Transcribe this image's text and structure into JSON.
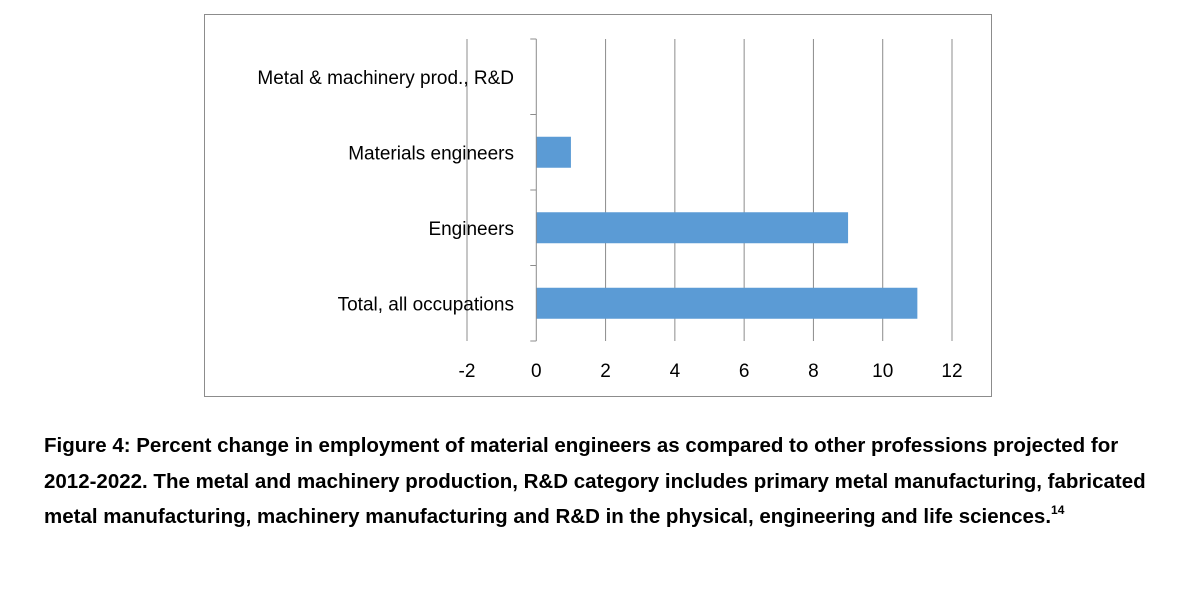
{
  "chart_data": {
    "type": "bar",
    "orientation": "horizontal",
    "categories": [
      "Metal & machinery prod., R&D",
      "Materials engineers",
      "Engineers",
      "Total, all occupations"
    ],
    "values": [
      0,
      1,
      9,
      11
    ],
    "xlim": [
      -2,
      12
    ],
    "xticks": [
      "-2",
      "0",
      "2",
      "4",
      "6",
      "8",
      "10",
      "12"
    ],
    "tick_step": 2,
    "grid": true,
    "legend": "none",
    "title": "",
    "xlabel": "",
    "ylabel": "",
    "bar_color": "#5b9bd5",
    "grid_color": "#8c8c8c"
  },
  "caption": {
    "text": "Figure 4: Percent change in employment of material engineers as compared to other professions projected for 2012-2022. The metal and machinery production, R&D category includes primary metal manufacturing, fabricated metal manufacturing, machinery manufacturing and R&D in the physical, engineering and life sciences.",
    "footnote": "14"
  }
}
